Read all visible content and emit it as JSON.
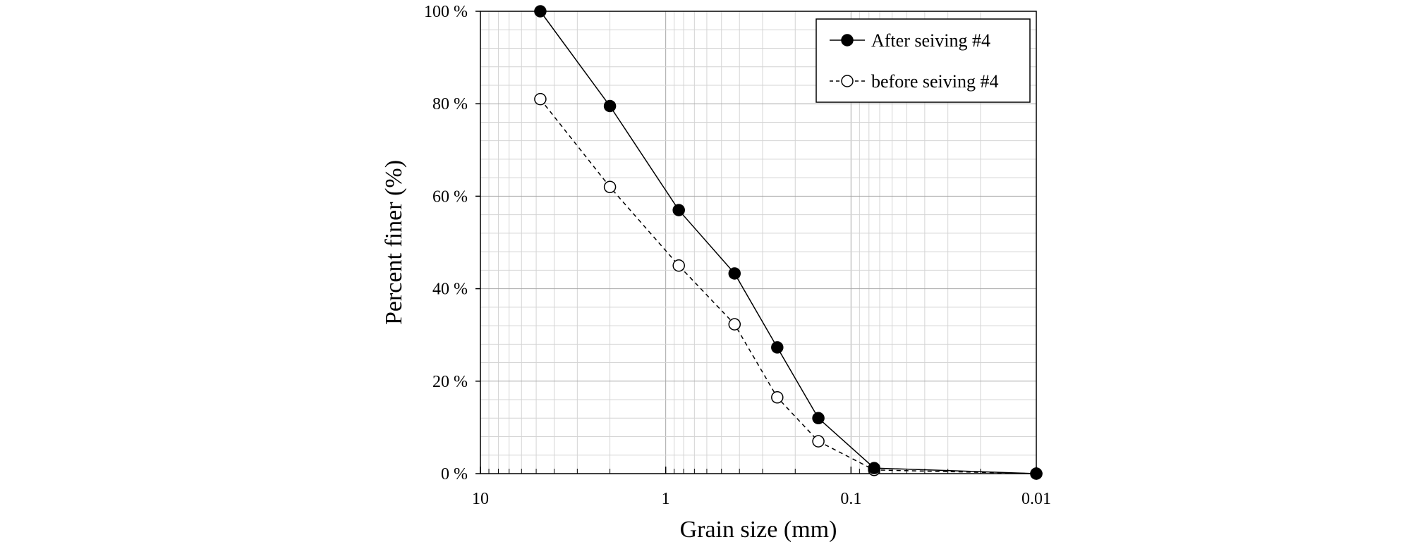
{
  "chart_data": {
    "type": "line",
    "xlabel": "Grain size (mm)",
    "ylabel": "Percent finer (%)",
    "x_scale": "log",
    "x_reversed": true,
    "xlim": [
      10,
      0.01
    ],
    "ylim": [
      0,
      100
    ],
    "x_ticks": [
      10,
      1,
      0.1,
      0.01
    ],
    "x_tick_labels": [
      "10",
      "1",
      "0.1",
      "0.01"
    ],
    "y_ticks": [
      0,
      20,
      40,
      60,
      80,
      100
    ],
    "y_tick_labels": [
      "0 %",
      "20 %",
      "40 %",
      "60 %",
      "80 %",
      "100 %"
    ],
    "grid": true,
    "legend_position": "top-right",
    "series": [
      {
        "name": "After seiving #4",
        "marker": "filled-circle",
        "line_style": "solid",
        "color": "#000000",
        "x": [
          4.75,
          2.0,
          0.85,
          0.425,
          0.25,
          0.15,
          0.075,
          0.01
        ],
        "y": [
          100,
          79.5,
          57,
          43.3,
          27.3,
          12,
          1.2,
          0
        ]
      },
      {
        "name": "before seiving #4",
        "marker": "open-circle",
        "line_style": "dashed",
        "color": "#000000",
        "x": [
          4.75,
          2.0,
          0.85,
          0.425,
          0.25,
          0.15,
          0.075,
          0.01
        ],
        "y": [
          81,
          62,
          45,
          32.3,
          16.5,
          7,
          0.8,
          0
        ]
      }
    ]
  }
}
